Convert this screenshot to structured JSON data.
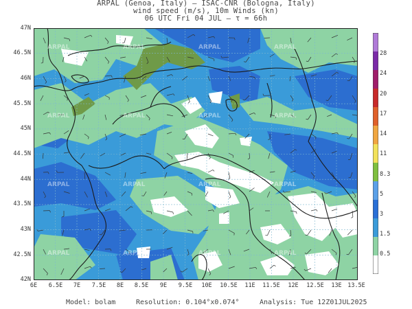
{
  "header": {
    "line1": "ARPAL (Genoa, Italy)  —  ISAC-CNR (Bologna, Italy)",
    "line2": "wind speed (m/s), 10m Winds (kn)",
    "line3": "06 UTC Fri 04 JUL  —  τ = 66h"
  },
  "axes": {
    "lat_labels": [
      "47N",
      "46.5N",
      "46N",
      "45.5N",
      "45N",
      "44.5N",
      "44N",
      "43.5N",
      "43N",
      "42.5N",
      "42N"
    ],
    "lon_labels": [
      "6E",
      "6.5E",
      "7E",
      "7.5E",
      "8E",
      "8.5E",
      "9E",
      "9.5E",
      "10E",
      "10.5E",
      "11E",
      "11.5E",
      "12E",
      "12.5E",
      "13E",
      "13.5E"
    ]
  },
  "colorbar": {
    "labels": [
      "0.5",
      "1.5",
      "3",
      "5",
      "8.3",
      "11",
      "14",
      "17",
      "20",
      "24",
      "28"
    ],
    "colors": [
      "#ffffff",
      "#8ed3a4",
      "#3a9bd9",
      "#2a6fd6",
      "#5aa0e8",
      "#7fbf3f",
      "#f2e25a",
      "#f0a640",
      "#e0602a",
      "#c82a2a",
      "#a01d6a",
      "#7b2aa8",
      "#b07ad8"
    ]
  },
  "watermark": "ARPAL",
  "footer": {
    "model": "Model: bolam",
    "resolution": "Resolution: 0.104°x0.074°",
    "analysis": "Analysis: Tue 12Z01JUL2025"
  },
  "palette": {
    "white": "#ffffff",
    "light_green": "#8ed3a4",
    "blue": "#3a9bd9",
    "dark_blue": "#2c6ed0",
    "olive": "#6f9a48",
    "border": "#1a1a1a"
  }
}
